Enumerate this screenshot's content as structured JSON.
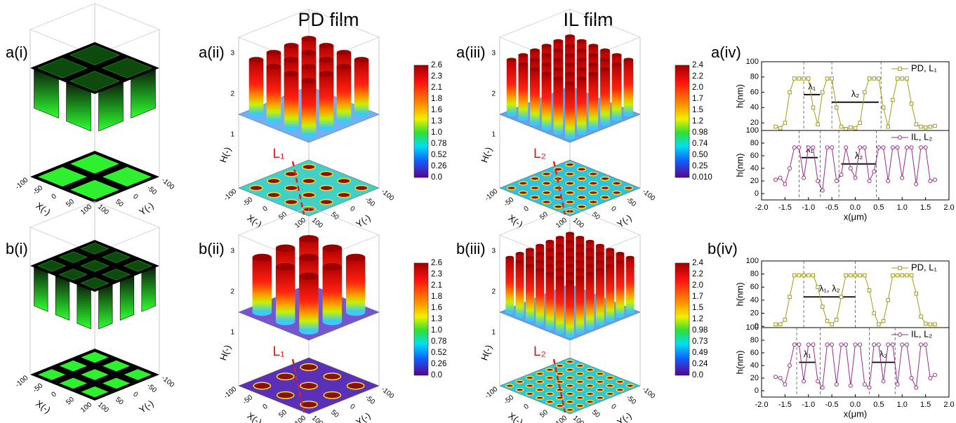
{
  "headers": {
    "pd": "PD film",
    "il": "IL film"
  },
  "panels": {
    "a_i": "a(i)",
    "a_ii": "a(ii)",
    "a_iii": "a(iii)",
    "a_iv": "a(iv)",
    "b_i": "b(i)",
    "b_ii": "b(ii)",
    "b_iii": "b(iii)",
    "b_iv": "b(iv)"
  },
  "axis3d": {
    "ticks": [
      "-100",
      "-50",
      "0",
      "50",
      "100"
    ],
    "x_label": "X(-)",
    "y_label": "Y(-)",
    "h_label": "H(-)",
    "h_ticks": [
      "1",
      "2",
      "3"
    ]
  },
  "colorbars": {
    "a_ii": [
      "2.6",
      "2.3",
      "2.1",
      "1.8",
      "1.6",
      "1.3",
      "1.0",
      "0.78",
      "0.52",
      "0.26",
      "0.0"
    ],
    "a_iii": [
      "2.4",
      "2.2",
      "2.0",
      "1.7",
      "1.5",
      "1.2",
      "0.98",
      "0.74",
      "0.50",
      "0.25",
      "0.010"
    ],
    "b_ii": [
      "2.6",
      "2.3",
      "2.1",
      "1.8",
      "1.6",
      "1.3",
      "1.0",
      "0.78",
      "0.52",
      "0.26",
      "0.0"
    ],
    "b_iii": [
      "2.4",
      "2.2",
      "2.0",
      "1.7",
      "1.5",
      "1.2",
      "0.98",
      "0.73",
      "0.49",
      "0.24",
      "0.0"
    ]
  },
  "lines": {
    "l1": "L₁",
    "l2": "L₂"
  },
  "chart_data": [
    {
      "type": "line",
      "ylabel": "h(nm)",
      "marker": "square",
      "x": [
        -1.7,
        -1.6,
        -1.5,
        -1.4,
        -1.3,
        -1.2,
        -1.1,
        -1,
        -0.9,
        -0.8,
        -0.7,
        -0.6,
        -0.5,
        -0.4,
        -0.3,
        -0.2,
        -0.1,
        0,
        0.1,
        0.2,
        0.3,
        0.4,
        0.5,
        0.6,
        0.7,
        0.8,
        0.9,
        1,
        1.1,
        1.2,
        1.3,
        1.4,
        1.5,
        1.6,
        1.7
      ],
      "series": [
        {
          "name": "PD, L₁",
          "color": "#a39a1c",
          "values": [
            15,
            13,
            20,
            60,
            78,
            78,
            78,
            78,
            40,
            18,
            60,
            78,
            78,
            40,
            15,
            12,
            14,
            13,
            20,
            60,
            78,
            78,
            78,
            40,
            15,
            50,
            78,
            78,
            78,
            45,
            18,
            15,
            14,
            15,
            16
          ]
        }
      ],
      "xlim": [
        -2,
        2
      ],
      "ylim": [
        10,
        100
      ],
      "yticks": [
        20,
        40,
        60,
        80,
        100
      ],
      "vlines": [
        -1.1,
        -0.5,
        0.55
      ],
      "spans": [
        {
          "label": "λ₁",
          "x": [
            -1.1,
            -0.75
          ],
          "y": 57
        },
        {
          "label": "λ₂",
          "x": [
            -0.5,
            0.5
          ],
          "y": 47
        }
      ]
    },
    {
      "type": "line",
      "ylabel": "h(nm)",
      "xlabel": "x(μm)",
      "marker": "circle",
      "x": [
        -1.7,
        -1.6,
        -1.5,
        -1.4,
        -1.3,
        -1.2,
        -1.1,
        -1,
        -0.9,
        -0.8,
        -0.7,
        -0.6,
        -0.5,
        -0.4,
        -0.3,
        -0.2,
        -0.1,
        0,
        0.1,
        0.2,
        0.3,
        0.4,
        0.5,
        0.6,
        0.7,
        0.8,
        0.9,
        1,
        1.1,
        1.2,
        1.3,
        1.4,
        1.5,
        1.6,
        1.7
      ],
      "series": [
        {
          "name": "IL, L₂",
          "color": "#9a2a8e",
          "values": [
            22,
            25,
            15,
            40,
            73,
            73,
            25,
            73,
            73,
            20,
            5,
            73,
            73,
            20,
            30,
            73,
            40,
            25,
            73,
            73,
            20,
            35,
            73,
            73,
            20,
            73,
            73,
            25,
            73,
            73,
            15,
            73,
            73,
            20,
            22
          ]
        }
      ],
      "xlim": [
        -2,
        2
      ],
      "ylim": [
        -10,
        100
      ],
      "yticks": [
        0,
        20,
        40,
        60,
        80,
        100
      ],
      "xticks": [
        {
          "value": -2,
          "label": "-2.0"
        },
        -1.5,
        {
          "value": -1,
          "label": "-1.0"
        },
        -0.5,
        {
          "value": 0,
          "label": "0.0"
        },
        0.5,
        {
          "value": 1,
          "label": "1.0"
        },
        1.5,
        {
          "value": 2,
          "label": "2.0"
        }
      ],
      "vlines": [
        -1.2,
        -0.75,
        -0.35,
        0.45
      ],
      "spans": [
        {
          "label": "λ₁",
          "x": [
            -1.15,
            -0.8
          ],
          "y": 57
        },
        {
          "label": "λ₂",
          "x": [
            -0.3,
            0.45
          ],
          "y": 47
        }
      ]
    },
    {
      "type": "line",
      "ylabel": "h(nm)",
      "marker": "square",
      "x": [
        -1.7,
        -1.6,
        -1.5,
        -1.4,
        -1.3,
        -1.2,
        -1.1,
        -1,
        -0.9,
        -0.8,
        -0.7,
        -0.6,
        -0.5,
        -0.4,
        -0.3,
        -0.2,
        -0.1,
        0,
        0.1,
        0.2,
        0.3,
        0.4,
        0.5,
        0.6,
        0.7,
        0.8,
        0.9,
        1,
        1.1,
        1.2,
        1.3,
        1.4,
        1.5,
        1.6,
        1.7
      ],
      "series": [
        {
          "name": "PD, L₁",
          "color": "#a39a1c",
          "values": [
            3,
            3,
            10,
            45,
            78,
            78,
            78,
            78,
            78,
            60,
            30,
            8,
            3,
            10,
            45,
            78,
            78,
            78,
            78,
            78,
            55,
            20,
            3,
            8,
            40,
            78,
            78,
            78,
            78,
            78,
            50,
            15,
            4,
            3,
            3
          ]
        }
      ],
      "xlim": [
        -2,
        2
      ],
      "ylim": [
        -2,
        100
      ],
      "yticks": [
        0,
        20,
        40,
        60,
        80,
        100
      ],
      "vlines": [
        -1.1,
        0
      ],
      "spans": [
        {
          "label": "λ₁, λ₂",
          "x": [
            -1.1,
            0
          ],
          "y": 45
        }
      ]
    },
    {
      "type": "line",
      "ylabel": "h(nm)",
      "xlabel": "x(μm)",
      "marker": "circle",
      "x": [
        -1.7,
        -1.6,
        -1.5,
        -1.4,
        -1.3,
        -1.2,
        -1.1,
        -1,
        -0.9,
        -0.8,
        -0.7,
        -0.6,
        -0.5,
        -0.4,
        -0.3,
        -0.2,
        -0.1,
        0,
        0.1,
        0.2,
        0.3,
        0.4,
        0.5,
        0.6,
        0.7,
        0.8,
        0.9,
        1,
        1.1,
        1.2,
        1.3,
        1.4,
        1.5,
        1.6,
        1.7
      ],
      "series": [
        {
          "name": "IL, L₂",
          "color": "#9a2a8e",
          "values": [
            22,
            20,
            10,
            40,
            73,
            73,
            15,
            73,
            73,
            15,
            5,
            73,
            73,
            10,
            73,
            73,
            8,
            73,
            73,
            10,
            5,
            73,
            73,
            15,
            73,
            73,
            10,
            73,
            73,
            20,
            5,
            73,
            73,
            20,
            25
          ]
        }
      ],
      "xlim": [
        -2,
        2
      ],
      "ylim": [
        -10,
        100
      ],
      "yticks": [
        0,
        20,
        40,
        60,
        80,
        100
      ],
      "xticks": [
        {
          "value": -2,
          "label": "-2.0"
        },
        -1.5,
        {
          "value": -1,
          "label": "-1.0"
        },
        -0.5,
        {
          "value": 0,
          "label": "0.0"
        },
        0.5,
        {
          "value": 1,
          "label": "1.0"
        },
        1.5,
        {
          "value": 2,
          "label": "2.0"
        }
      ],
      "vlines": [
        -1.25,
        -0.75,
        0.3,
        0.85
      ],
      "spans": [
        {
          "label": "λ₁",
          "x": [
            -1.2,
            -0.85
          ],
          "y": 45
        },
        {
          "label": "λ₂",
          "x": [
            0.35,
            0.85
          ],
          "y": 45
        }
      ]
    }
  ]
}
